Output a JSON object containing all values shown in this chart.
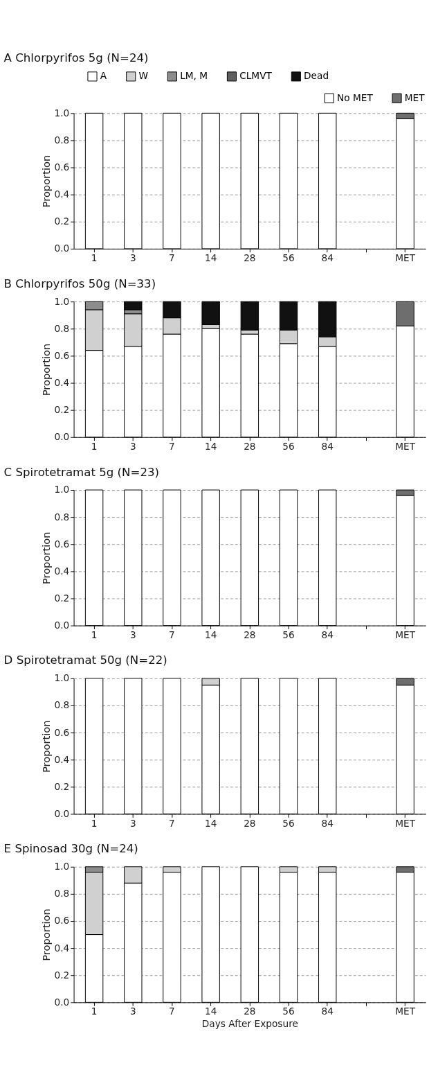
{
  "chart_data": [
    {
      "type": "bar",
      "stacked": true,
      "title": "A Chlorpyrifos  5g  (N=24)",
      "ylabel": "Proportion",
      "categories": [
        "1",
        "3",
        "7",
        "14",
        "28",
        "56",
        "84",
        null,
        "MET"
      ],
      "ylim": [
        0,
        1
      ],
      "yticks": [
        {
          "value": 0,
          "label": "0.0"
        },
        {
          "value": 0.2,
          "label": "0.2"
        },
        {
          "value": 0.4,
          "label": "0.4"
        },
        {
          "value": 0.6,
          "label": "0.6"
        },
        {
          "value": 0.8,
          "label": "0.8"
        },
        {
          "value": 1,
          "label": "1.0"
        }
      ],
      "grid": "y",
      "legend": "top",
      "series": [
        {
          "name": "A",
          "color": "#ffffff",
          "values": [
            1,
            1,
            1,
            1,
            1,
            1,
            1,
            null,
            null
          ]
        },
        {
          "name": "W",
          "color": "#d0d0d0",
          "values": [
            null,
            null,
            null,
            null,
            null,
            null,
            null,
            null,
            null
          ]
        },
        {
          "name": "LM, M",
          "color": "#8c8c8c",
          "values": [
            null,
            null,
            null,
            null,
            null,
            null,
            null,
            null,
            null
          ]
        },
        {
          "name": "CLMVT",
          "color": "#5e5e5e",
          "values": [
            null,
            null,
            null,
            null,
            null,
            null,
            null,
            null,
            null
          ]
        },
        {
          "name": "Dead",
          "color": "#111111",
          "values": [
            null,
            null,
            null,
            null,
            null,
            null,
            null,
            null,
            null
          ]
        },
        {
          "name": "No MET",
          "color": "#fefefe",
          "values": [
            null,
            null,
            null,
            null,
            null,
            null,
            null,
            null,
            0.96
          ]
        },
        {
          "name": "MET",
          "color": "#6e6e6e",
          "values": [
            null,
            null,
            null,
            null,
            null,
            null,
            null,
            null,
            0.04
          ]
        }
      ]
    },
    {
      "type": "bar",
      "stacked": true,
      "title": "B Chlorpyrifos  50g  (N=33)",
      "ylabel": "Proportion",
      "categories": [
        "1",
        "3",
        "7",
        "14",
        "28",
        "56",
        "84",
        null,
        "MET"
      ],
      "ylim": [
        0,
        1
      ],
      "yticks": [
        {
          "value": 0,
          "label": "0.0"
        },
        {
          "value": 0.2,
          "label": "0.2"
        },
        {
          "value": 0.4,
          "label": "0.4"
        },
        {
          "value": 0.6,
          "label": "0.6"
        },
        {
          "value": 0.8,
          "label": "0.8"
        },
        {
          "value": 1,
          "label": "1.0"
        }
      ],
      "grid": "y",
      "series": [
        {
          "color": "#ffffff",
          "values": [
            0.64,
            0.67,
            0.76,
            0.8,
            0.76,
            0.69,
            0.67,
            null,
            null
          ]
        },
        {
          "color": "#d0d0d0",
          "values": [
            0.3,
            0.24,
            0.12,
            0.03,
            0.03,
            0.1,
            0.07,
            null,
            null
          ]
        },
        {
          "color": "#8c8c8c",
          "values": [
            0.06,
            0.03,
            null,
            null,
            null,
            null,
            null,
            null,
            null
          ]
        },
        {
          "color": "#111111",
          "values": [
            null,
            0.06,
            0.12,
            0.17,
            0.21,
            0.21,
            0.26,
            null,
            null
          ]
        },
        {
          "color": "#fefefe",
          "values": [
            null,
            null,
            null,
            null,
            null,
            null,
            null,
            null,
            0.82
          ]
        },
        {
          "color": "#6e6e6e",
          "values": [
            null,
            null,
            null,
            null,
            null,
            null,
            null,
            null,
            0.18
          ]
        }
      ]
    },
    {
      "type": "bar",
      "stacked": true,
      "title": "C  Spirotetramat  5g  (N=23)",
      "ylabel": "Proportion",
      "categories": [
        "1",
        "3",
        "7",
        "14",
        "28",
        "56",
        "84",
        null,
        "MET"
      ],
      "ylim": [
        0,
        1
      ],
      "yticks": [
        {
          "value": 0,
          "label": "0.0"
        },
        {
          "value": 0.2,
          "label": "0.2"
        },
        {
          "value": 0.4,
          "label": "0.4"
        },
        {
          "value": 0.6,
          "label": "0.6"
        },
        {
          "value": 0.8,
          "label": "0.8"
        },
        {
          "value": 1,
          "label": "1.0"
        }
      ],
      "grid": "y",
      "series": [
        {
          "color": "#ffffff",
          "values": [
            1,
            1,
            1,
            1,
            1,
            1,
            1,
            null,
            null
          ]
        },
        {
          "color": "#fefefe",
          "values": [
            null,
            null,
            null,
            null,
            null,
            null,
            null,
            null,
            0.96
          ]
        },
        {
          "color": "#6e6e6e",
          "values": [
            null,
            null,
            null,
            null,
            null,
            null,
            null,
            null,
            0.04
          ]
        }
      ]
    },
    {
      "type": "bar",
      "stacked": true,
      "title": "D  Spirotetramat  50g  (N=22)",
      "ylabel": "Proportion",
      "categories": [
        "1",
        "3",
        "7",
        "14",
        "28",
        "56",
        "84",
        null,
        "MET"
      ],
      "ylim": [
        0,
        1
      ],
      "yticks": [
        {
          "value": 0,
          "label": "0.0"
        },
        {
          "value": 0.2,
          "label": "0.2"
        },
        {
          "value": 0.4,
          "label": "0.4"
        },
        {
          "value": 0.6,
          "label": "0.6"
        },
        {
          "value": 0.8,
          "label": "0.8"
        },
        {
          "value": 1,
          "label": "1.0"
        }
      ],
      "grid": "y",
      "series": [
        {
          "color": "#ffffff",
          "values": [
            1,
            1,
            1,
            0.95,
            1,
            1,
            1,
            null,
            null
          ]
        },
        {
          "color": "#d0d0d0",
          "values": [
            null,
            null,
            null,
            0.05,
            null,
            null,
            null,
            null,
            null
          ]
        },
        {
          "color": "#fefefe",
          "values": [
            null,
            null,
            null,
            null,
            null,
            null,
            null,
            null,
            0.95
          ]
        },
        {
          "color": "#6e6e6e",
          "values": [
            null,
            null,
            null,
            null,
            null,
            null,
            null,
            null,
            0.05
          ]
        }
      ]
    },
    {
      "type": "bar",
      "stacked": true,
      "title": "E  Spinosad 30g  (N=24)",
      "ylabel": "Proportion",
      "xlabel": "Days After Exposure",
      "categories": [
        "1",
        "3",
        "7",
        "14",
        "28",
        "56",
        "84",
        null,
        "MET"
      ],
      "ylim": [
        0,
        1
      ],
      "yticks": [
        {
          "value": 0,
          "label": "0.0"
        },
        {
          "value": 0.2,
          "label": "0.2"
        },
        {
          "value": 0.4,
          "label": "0.4"
        },
        {
          "value": 0.6,
          "label": "0.6"
        },
        {
          "value": 0.8,
          "label": "0.8"
        },
        {
          "value": 1,
          "label": "1.0"
        }
      ],
      "grid": "y",
      "series": [
        {
          "color": "#ffffff",
          "values": [
            0.5,
            0.88,
            0.96,
            1,
            1,
            0.96,
            0.96,
            null,
            null
          ]
        },
        {
          "color": "#d0d0d0",
          "values": [
            0.46,
            0.12,
            0.04,
            null,
            null,
            0.04,
            0.04,
            null,
            null
          ]
        },
        {
          "color": "#8c8c8c",
          "values": [
            0.04,
            null,
            null,
            null,
            null,
            null,
            null,
            null,
            null
          ]
        },
        {
          "color": "#fefefe",
          "values": [
            null,
            null,
            null,
            null,
            null,
            null,
            null,
            null,
            0.96
          ]
        },
        {
          "color": "#6e6e6e",
          "values": [
            null,
            null,
            null,
            null,
            null,
            null,
            null,
            null,
            0.04
          ]
        }
      ]
    }
  ]
}
